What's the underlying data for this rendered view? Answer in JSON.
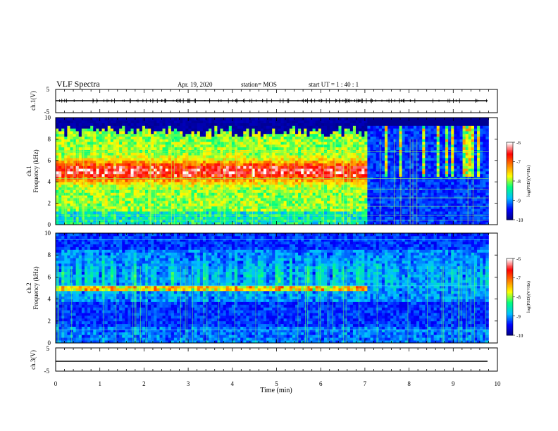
{
  "header": {
    "title": "VLF Spectra",
    "date": "Apr. 19, 2020",
    "station": "station= MOS",
    "start_ut": "start  UT =   1 : 40 : 1"
  },
  "chart_data": [
    {
      "type": "line",
      "panel": "ch1-waveform",
      "ylabel": "ch.1(V)",
      "ylim": [
        -5,
        5
      ],
      "ytick_labels": [
        "5",
        "-5"
      ],
      "xlim": [
        0,
        10
      ],
      "series": [
        {
          "x": [
            0,
            9.8
          ],
          "y": [
            0,
            0
          ]
        }
      ]
    },
    {
      "type": "heatmap",
      "panel": "ch1-spectrogram",
      "ylabel_line1": "ch.1",
      "ylabel_line2": "Frequency  (kHz)",
      "ylim": [
        0,
        10
      ],
      "ytick_labels": [
        "0",
        "2",
        "4",
        "6",
        "8",
        "10"
      ],
      "xlim": [
        0,
        10
      ],
      "data_end_min": 9.8,
      "band_center_khz": 5.0,
      "change_time_min": 7.0,
      "colorbar": {
        "label": "log(PSD)(V²/Hz)",
        "range": [
          -10,
          -6
        ],
        "tick_labels": [
          "-6",
          "-7",
          "-8",
          "-9",
          "-10"
        ],
        "colormap": [
          "#000080",
          "#0000ff",
          "#00c0ff",
          "#00ff80",
          "#ffff00",
          "#ff8000",
          "#ff0000",
          "#ffffff"
        ]
      }
    },
    {
      "type": "heatmap",
      "panel": "ch2-spectrogram",
      "ylabel_line1": "ch.2",
      "ylabel_line2": "Frequency  (kHz)",
      "ylim": [
        0,
        10
      ],
      "ytick_labels": [
        "0",
        "2",
        "4",
        "6",
        "8",
        "10"
      ],
      "xlim": [
        0,
        10
      ],
      "data_end_min": 9.8,
      "band_center_khz": 5.0,
      "change_time_min": 7.0,
      "colorbar": {
        "label": "log(PSD)(V²/Hz)",
        "range": [
          -10,
          -6
        ],
        "tick_labels": [
          "-6",
          "-7",
          "-8",
          "-9",
          "-10"
        ],
        "colormap": [
          "#000080",
          "#0000ff",
          "#00c0ff",
          "#00ff80",
          "#ffff00",
          "#ff8000",
          "#ff0000",
          "#ffffff"
        ]
      }
    },
    {
      "type": "line",
      "panel": "ch3-waveform",
      "ylabel": "ch.3(V)",
      "ylim": [
        -5,
        5
      ],
      "ytick_labels": [
        "5",
        "-5"
      ],
      "xlim": [
        0,
        10
      ],
      "series": [
        {
          "x": [
            0,
            9.8
          ],
          "y": [
            -1.5,
            -1.5
          ]
        }
      ]
    }
  ],
  "x_axis": {
    "label": "Time  (min)",
    "tick_labels": [
      "0",
      "1",
      "2",
      "3",
      "4",
      "5",
      "6",
      "7",
      "8",
      "9",
      "10"
    ]
  }
}
